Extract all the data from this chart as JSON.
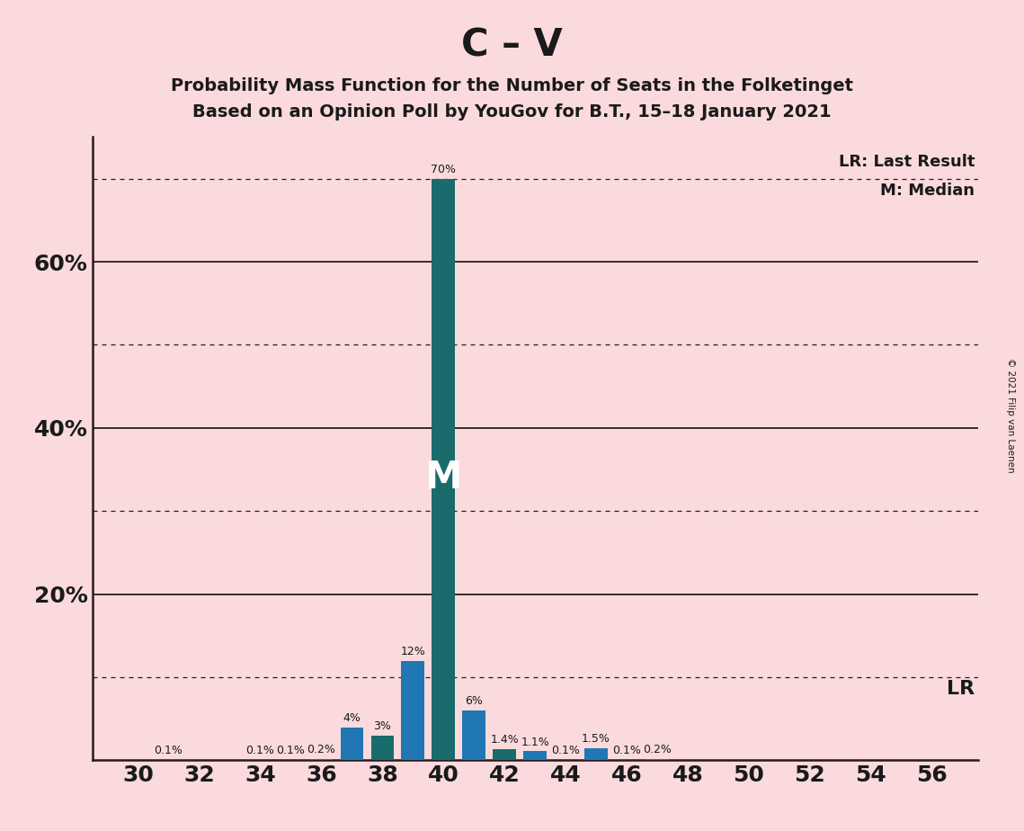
{
  "title": "C – V",
  "subtitle1": "Probability Mass Function for the Number of Seats in the Folketinget",
  "subtitle2": "Based on an Opinion Poll by YouGov for B.T., 15–18 January 2021",
  "copyright": "© 2021 Filip van Laenen",
  "seats": [
    30,
    31,
    32,
    33,
    34,
    35,
    36,
    37,
    38,
    39,
    40,
    41,
    42,
    43,
    44,
    45,
    46,
    47,
    48,
    49,
    50,
    51,
    52,
    53,
    54,
    55,
    56
  ],
  "probabilities": [
    0.0,
    0.1,
    0.0,
    0.0,
    0.1,
    0.1,
    0.2,
    4.0,
    3.0,
    12.0,
    70.0,
    6.0,
    1.4,
    1.1,
    0.1,
    1.5,
    0.1,
    0.2,
    0.0,
    0.0,
    0.0,
    0.0,
    0.0,
    0.0,
    0.0,
    0.0,
    0.0
  ],
  "bar_colors": [
    "#2077b4",
    "#2077b4",
    "#2077b4",
    "#2077b4",
    "#2077b4",
    "#2077b4",
    "#2077b4",
    "#2077b4",
    "#1a6b6b",
    "#2077b4",
    "#1a6b6b",
    "#2077b4",
    "#1a6b6b",
    "#2077b4",
    "#2077b4",
    "#2077b4",
    "#2077b4",
    "#2077b4",
    "#2077b4",
    "#2077b4",
    "#2077b4",
    "#2077b4",
    "#2077b4",
    "#2077b4",
    "#2077b4",
    "#2077b4",
    "#2077b4"
  ],
  "median_seat": 40,
  "lr_value": 10.0,
  "lr_label": "LR: Last Result",
  "median_label": "M: Median",
  "median_marker": "M",
  "background_color": "#fadadd",
  "ylim_max": 75,
  "ytick_values": [
    0,
    20,
    40,
    60
  ],
  "ytick_labels": [
    "",
    "20%",
    "40%",
    "60%"
  ],
  "xlabel_ticks": [
    30,
    32,
    34,
    36,
    38,
    40,
    42,
    44,
    46,
    48,
    50,
    52,
    54,
    56
  ],
  "solid_gridlines": [
    20.0,
    40.0,
    60.0
  ],
  "dotted_gridlines": [
    10.0,
    30.0,
    50.0,
    70.0
  ],
  "xlim_left": 28.5,
  "xlim_right": 57.5,
  "bar_width": 0.75
}
